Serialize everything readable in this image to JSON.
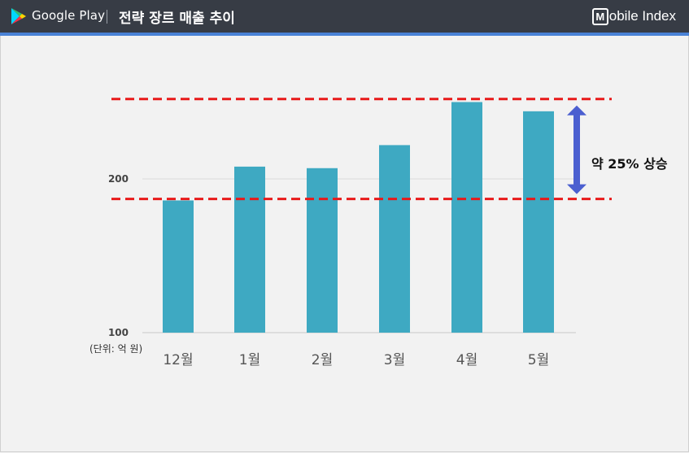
{
  "header": {
    "brand": "Google Play",
    "title": "전략 장르 매출 추이",
    "logo_m": "M",
    "logo_rest": "obile Index"
  },
  "annotation": "약 25% 상승",
  "unit_label": "(단위: 억 원)",
  "colors": {
    "bar": "#3ea9c2",
    "ref_line": "#e81a1a",
    "arrow": "#4b5fd0",
    "header_bg": "#373c45",
    "header_accent": "#4a82d6"
  },
  "chart_data": {
    "type": "bar",
    "categories": [
      "12월",
      "1월",
      "2월",
      "3월",
      "4월",
      "5월"
    ],
    "values": [
      186,
      208,
      207,
      222,
      250,
      244
    ],
    "yticks": [
      100,
      200
    ],
    "ylim": [
      100,
      250
    ],
    "reference_lines": [
      187,
      252
    ],
    "title": "",
    "xlabel": "",
    "ylabel": ""
  }
}
